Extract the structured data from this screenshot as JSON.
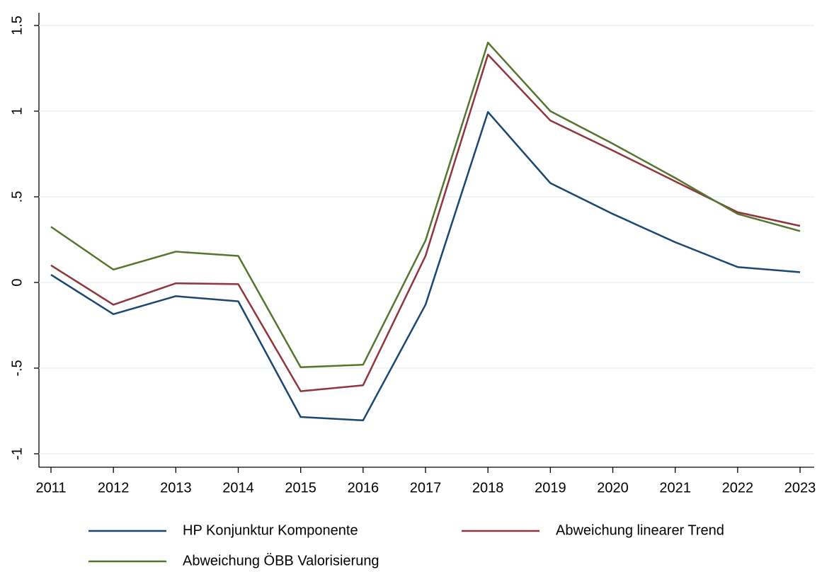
{
  "chart_data": {
    "type": "line",
    "x": [
      2011,
      2012,
      2013,
      2014,
      2015,
      2016,
      2017,
      2018,
      2019,
      2020,
      2021,
      2022,
      2023
    ],
    "xlim": [
      2011,
      2023
    ],
    "xticks": [
      2011,
      2012,
      2013,
      2014,
      2015,
      2016,
      2017,
      2018,
      2019,
      2020,
      2021,
      2022,
      2023
    ],
    "ylim": [
      -1,
      1.5
    ],
    "yticks": [
      -1,
      {
        "value": -0.5,
        "label": "-.5"
      },
      0,
      {
        "value": 0.5,
        "label": ".5"
      },
      1,
      1.5
    ],
    "grid": true,
    "legend": "bottom",
    "series": [
      {
        "name": "HP Konjunktur Komponente",
        "color": "#1a476f",
        "values": [
          0.045,
          -0.185,
          -0.08,
          -0.11,
          -0.785,
          -0.805,
          -0.13,
          0.995,
          0.58,
          0.4,
          0.235,
          0.09,
          0.06
        ]
      },
      {
        "name": "Abweichung linearer Trend",
        "color": "#90353b",
        "values": [
          0.1,
          -0.13,
          -0.005,
          -0.01,
          -0.635,
          -0.6,
          0.155,
          1.33,
          0.945,
          0.77,
          0.59,
          0.41,
          0.33
        ]
      },
      {
        "name": "Abweichung ÖBB Valorisierung",
        "color": "#55752f",
        "values": [
          0.325,
          0.075,
          0.18,
          0.155,
          -0.495,
          -0.48,
          0.245,
          1.4,
          1.0,
          0.81,
          0.61,
          0.4,
          0.3
        ]
      }
    ]
  }
}
